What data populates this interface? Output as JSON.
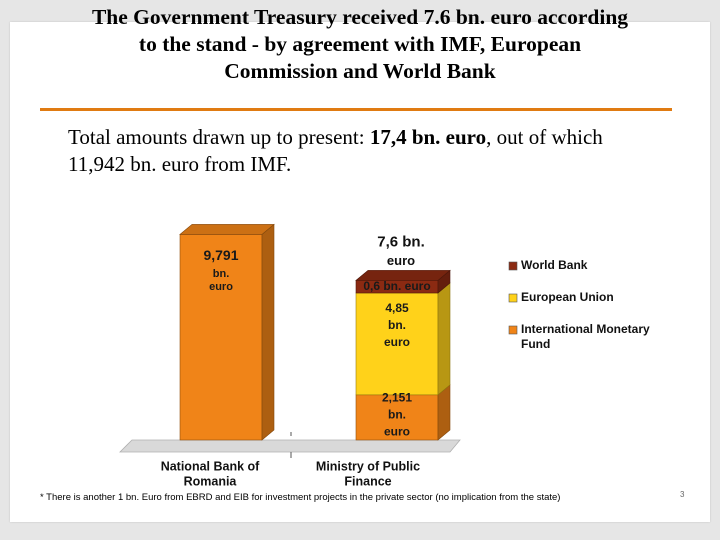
{
  "slide": {
    "title_lines": [
      "The Government Treasury received 7.6 bn. euro according",
      "to the stand - by agreement with IMF, European",
      "Commission and World Bank"
    ],
    "subtitle": {
      "part1": "Total amounts drawn up to present: ",
      "bold": "17,4 bn. euro",
      "part2": ", out of which",
      "line2": "11,942 bn. euro from IMF."
    },
    "footnote": "* There is another 1 bn. Euro from EBRD and EIB for investment projects in the private sector (no implication from the state)",
    "page_number": "3"
  },
  "colors": {
    "world_bank": "#8b2a12",
    "european_union": "#ffd21a",
    "imf": "#f08418",
    "rule": "#e07b12"
  },
  "chart_data": {
    "type": "bar",
    "stacked": true,
    "three_d": true,
    "categories": [
      "National Bank of Romania",
      "Ministry of Public Finance"
    ],
    "category_label_lines": [
      [
        "National Bank of",
        "Romania"
      ],
      [
        "Ministry of Public",
        "Finance"
      ]
    ],
    "series": [
      {
        "name": "International Monetary Fund",
        "name_lines": [
          "International Monetary",
          "Fund"
        ],
        "values": [
          9.791,
          2.151
        ],
        "color": "#f08418"
      },
      {
        "name": "European Union",
        "name_lines": [
          "European Union"
        ],
        "values": [
          0,
          4.85
        ],
        "color": "#ffd21a"
      },
      {
        "name": "World Bank",
        "name_lines": [
          "World Bank"
        ],
        "values": [
          0,
          0.6
        ],
        "color": "#8b2a12"
      }
    ],
    "data_labels": [
      {
        "bar": 0,
        "series": 0,
        "lines": [
          "9,791",
          "bn.",
          "euro"
        ]
      },
      {
        "bar": 1,
        "series": 0,
        "lines": [
          "2,151",
          "bn.",
          "euro"
        ]
      },
      {
        "bar": 1,
        "series": 1,
        "lines": [
          "4,85",
          "bn.",
          "euro"
        ]
      },
      {
        "bar": 1,
        "series": 2,
        "lines": [
          "0,6 bn. euro"
        ]
      }
    ],
    "total_labels": [
      {
        "bar": 1,
        "lines": [
          "7,6 bn.",
          "euro"
        ]
      }
    ],
    "legend_position": "right",
    "grid": false,
    "ylim": [
      0,
      10
    ]
  }
}
